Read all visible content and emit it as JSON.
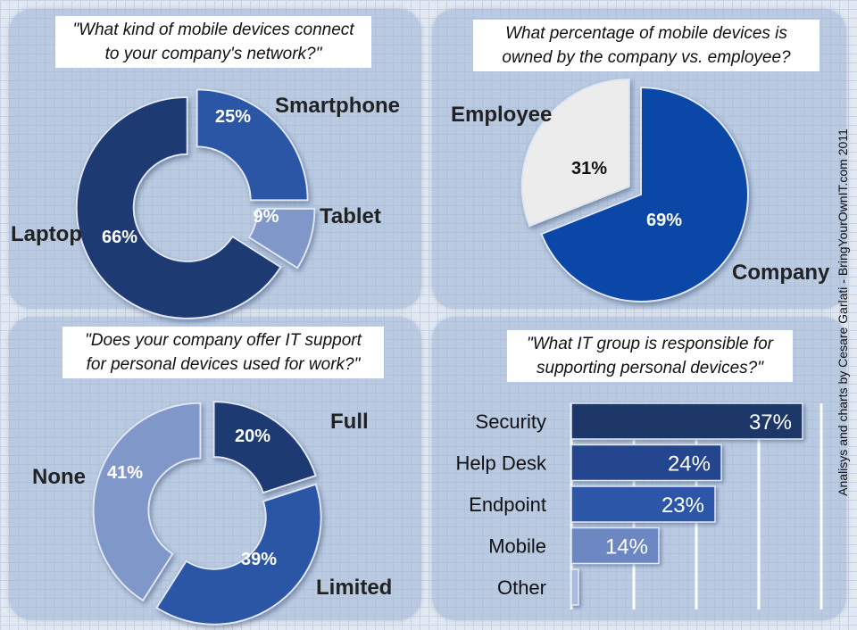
{
  "credit": "Analisys and charts by Cesare Garlati - BringYourOwnIT.com 2011",
  "chart_data": [
    {
      "type": "pie",
      "style": "donut",
      "title": "\"What kind of mobile devices connect\nto your company's network?\"",
      "categories": [
        "Smartphone",
        "Tablet",
        "Laptop"
      ],
      "values": [
        25,
        9,
        66
      ],
      "labels": [
        "25%",
        "9%",
        "66%"
      ],
      "colors": [
        "#2b56a6",
        "#8097c9",
        "#1d3b72"
      ]
    },
    {
      "type": "pie",
      "title": "What percentage of mobile devices is\nowned by the company vs. employee?",
      "categories": [
        "Company",
        "Employee"
      ],
      "values": [
        69,
        31
      ],
      "labels": [
        "69%",
        "31%"
      ],
      "colors": [
        "#0b47a6",
        "#ececec"
      ]
    },
    {
      "type": "pie",
      "style": "donut",
      "title": "\"Does your company offer IT support\nfor personal devices used for work?\"",
      "categories": [
        "Full",
        "Limited",
        "None"
      ],
      "values": [
        20,
        39,
        41
      ],
      "labels": [
        "20%",
        "39%",
        "41%"
      ],
      "colors": [
        "#1d3b72",
        "#2b56a6",
        "#8097c9"
      ]
    },
    {
      "type": "bar",
      "orientation": "horizontal",
      "title": "\"What IT group is responsible for\nsupporting personal devices?\"",
      "categories": [
        "Security",
        "Help Desk",
        "Endpoint",
        "Mobile",
        "Other"
      ],
      "values": [
        37,
        24,
        23,
        14,
        1
      ],
      "labels": [
        "37%",
        "24%",
        "23%",
        "14%",
        ""
      ],
      "xlim": [
        0,
        40
      ],
      "grid": true,
      "colors": [
        "#1c3768",
        "#24468f",
        "#2c57a8",
        "#6c87c2",
        "#a9bbdf"
      ]
    }
  ]
}
